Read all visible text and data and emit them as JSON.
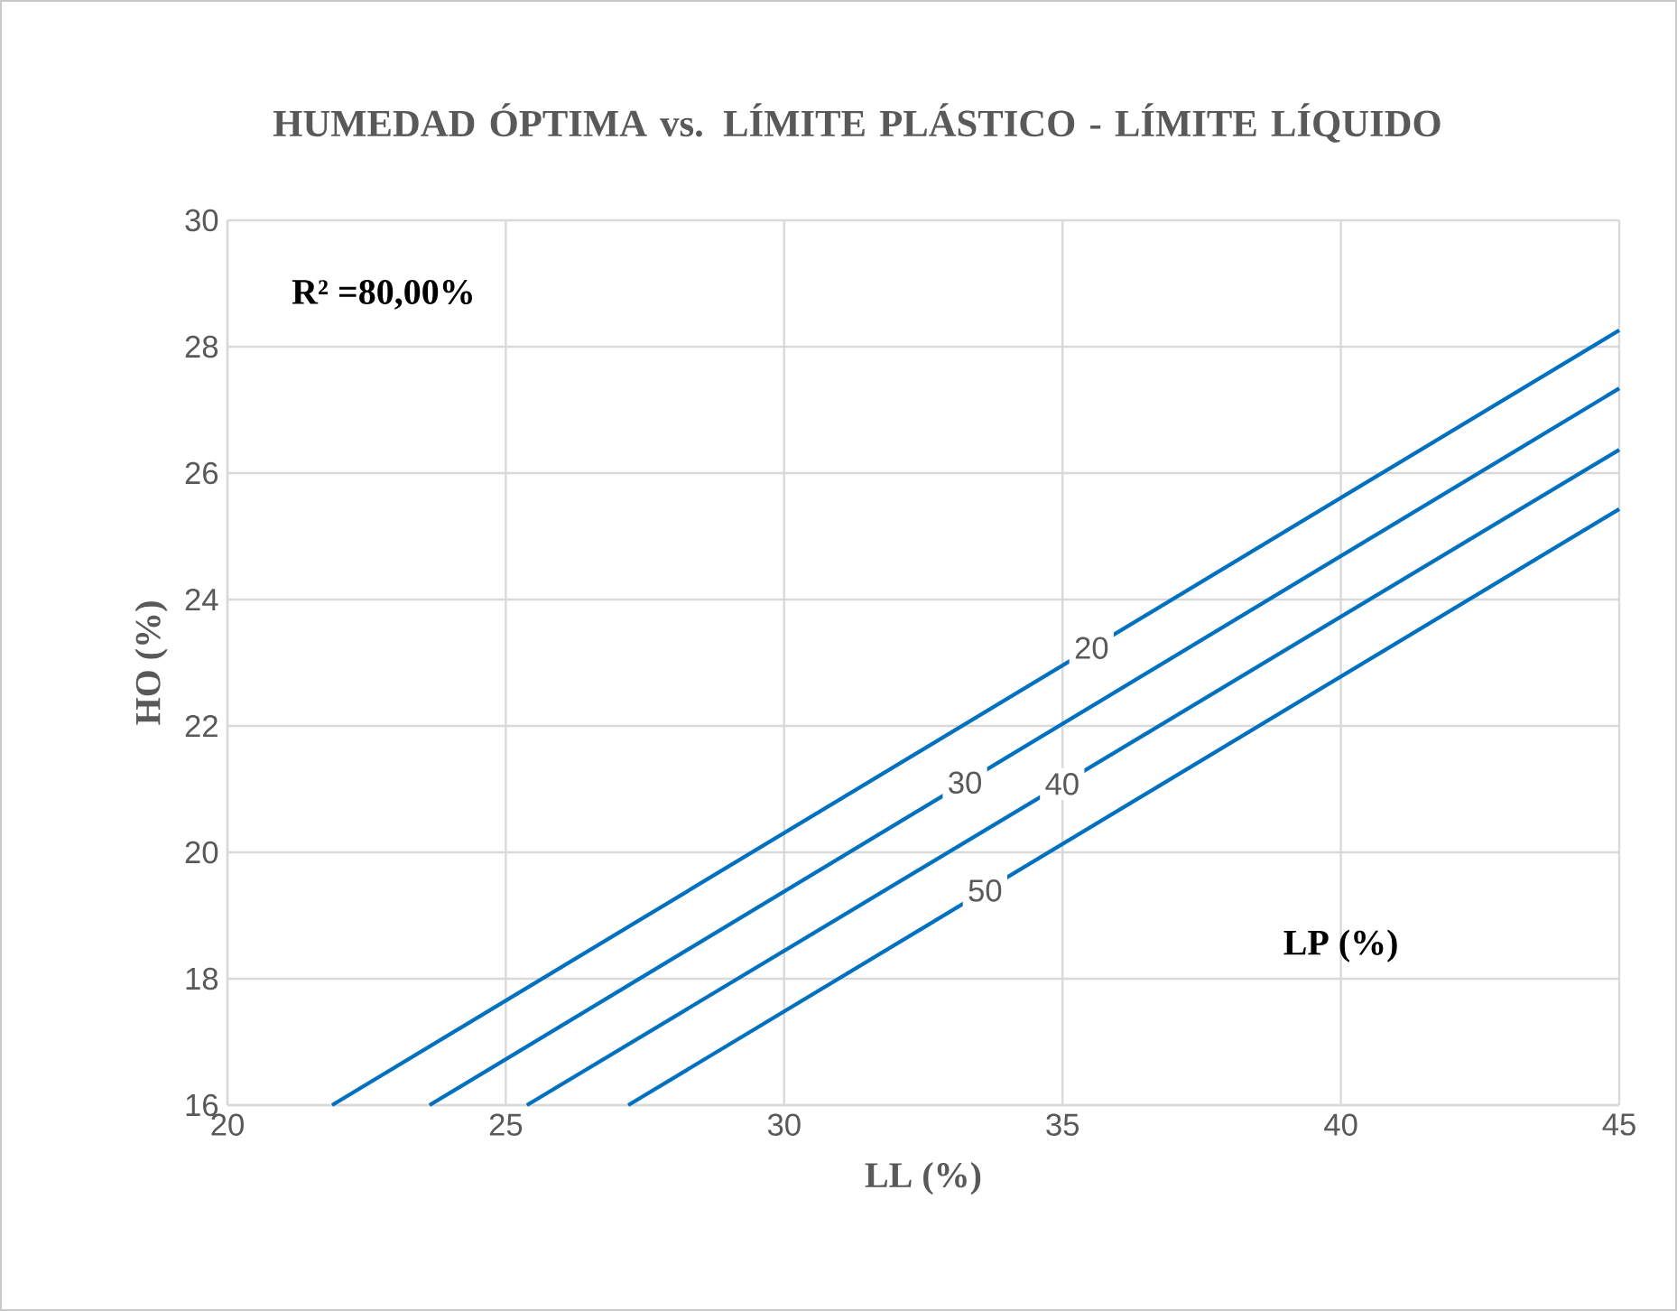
{
  "chart_data": {
    "type": "line",
    "title": "HUMEDAD ÓPTIMA vs. LÍMITE PLÁSTICO - LÍMITE LÍQUIDO",
    "xlabel": "LL (%)",
    "ylabel": "HO (%)",
    "annotations": [
      "R² =80,00%",
      "LP (%)"
    ],
    "xlim": [
      20,
      45
    ],
    "ylim": [
      16,
      30
    ],
    "xticks": [
      20,
      25,
      30,
      35,
      40,
      45
    ],
    "yticks": [
      16,
      18,
      20,
      22,
      24,
      26,
      28,
      30
    ],
    "grid": true,
    "legend": false,
    "series": [
      {
        "name": "20",
        "color": "#0070c0",
        "x": [
          21.88,
          45
        ],
        "values": [
          16,
          28.26
        ]
      },
      {
        "name": "30",
        "color": "#0070c0",
        "x": [
          23.63,
          45
        ],
        "values": [
          16,
          27.34
        ]
      },
      {
        "name": "40",
        "color": "#0070c0",
        "x": [
          25.38,
          45
        ],
        "values": [
          16,
          26.37
        ]
      },
      {
        "name": "50",
        "color": "#0070c0",
        "x": [
          27.2,
          45
        ],
        "values": [
          16,
          25.43
        ]
      }
    ]
  }
}
